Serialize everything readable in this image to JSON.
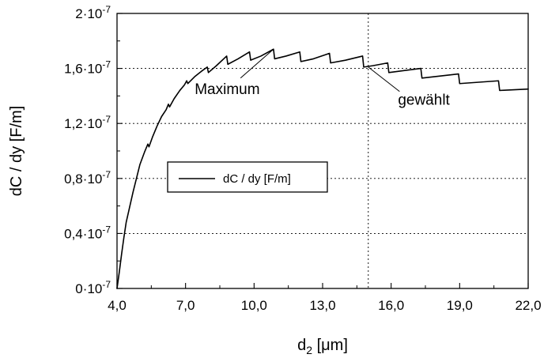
{
  "chart_data": {
    "type": "line",
    "title": "",
    "xlabel_main": "d",
    "xlabel_sub": "2",
    "xlabel_unit": " [μm]",
    "ylabel": "dC / dy  [F/m]",
    "xlim": [
      4.0,
      22.0
    ],
    "ylim": [
      0.0,
      2e-07
    ],
    "x_ticks": [
      4.0,
      7.0,
      10.0,
      13.0,
      16.0,
      19.0,
      22.0
    ],
    "x_tick_labels": [
      "4,0",
      "7,0",
      "10,0",
      "13,0",
      "16,0",
      "19,0",
      "22,0"
    ],
    "y_ticks": [
      {
        "value": 0.0,
        "mantissa": "0·10",
        "exp": "-7"
      },
      {
        "value": 4e-08,
        "mantissa": "0,4·10",
        "exp": "-7"
      },
      {
        "value": 8e-08,
        "mantissa": "0,8·10",
        "exp": "-7"
      },
      {
        "value": 1.2e-07,
        "mantissa": "1,2·10",
        "exp": "-7"
      },
      {
        "value": 1.6e-07,
        "mantissa": "1,6·10",
        "exp": "-7"
      },
      {
        "value": 2e-07,
        "mantissa": "2·10",
        "exp": "-7"
      }
    ],
    "grid": {
      "horizontal_dotted": true,
      "x_marker": 15.0
    },
    "legend": {
      "position": "center-left",
      "entries": [
        "dC / dy  [F/m]"
      ]
    },
    "series": [
      {
        "name": "dC / dy  [F/m]",
        "color": "#000000",
        "points": [
          [
            4.0,
            0.0
          ],
          [
            4.1,
            1.2e-08
          ],
          [
            4.2,
            2.5e-08
          ],
          [
            4.3,
            3.7e-08
          ],
          [
            4.4,
            4.8e-08
          ],
          [
            4.55,
            5.9e-08
          ],
          [
            4.7,
            7e-08
          ],
          [
            4.85,
            8e-08
          ],
          [
            5.0,
            9e-08
          ],
          [
            5.2,
            9.9e-08
          ],
          [
            5.35,
            1.05e-07
          ],
          [
            5.4,
            1.03e-07
          ],
          [
            5.55,
            1.1e-07
          ],
          [
            5.75,
            1.18e-07
          ],
          [
            5.95,
            1.25e-07
          ],
          [
            6.15,
            1.3e-07
          ],
          [
            6.25,
            1.34e-07
          ],
          [
            6.3,
            1.32e-07
          ],
          [
            6.5,
            1.38e-07
          ],
          [
            6.75,
            1.44e-07
          ],
          [
            6.95,
            1.48e-07
          ],
          [
            7.05,
            1.51e-07
          ],
          [
            7.1,
            1.49e-07
          ],
          [
            7.4,
            1.54e-07
          ],
          [
            7.7,
            1.58e-07
          ],
          [
            7.95,
            1.61e-07
          ],
          [
            8.0,
            1.57e-07
          ],
          [
            8.35,
            1.62e-07
          ],
          [
            8.8,
            1.69e-07
          ],
          [
            8.85,
            1.63e-07
          ],
          [
            9.3,
            1.67e-07
          ],
          [
            9.8,
            1.72e-07
          ],
          [
            9.85,
            1.66e-07
          ],
          [
            10.3,
            1.69e-07
          ],
          [
            10.85,
            1.74e-07
          ],
          [
            10.9,
            1.67e-07
          ],
          [
            11.4,
            1.69e-07
          ],
          [
            12.0,
            1.72e-07
          ],
          [
            12.05,
            1.65e-07
          ],
          [
            12.6,
            1.67e-07
          ],
          [
            13.3,
            1.71e-07
          ],
          [
            13.35,
            1.64e-07
          ],
          [
            14.0,
            1.66e-07
          ],
          [
            14.75,
            1.69e-07
          ],
          [
            14.8,
            1.61e-07
          ],
          [
            15.2,
            1.62e-07
          ],
          [
            15.85,
            1.64e-07
          ],
          [
            15.9,
            1.57e-07
          ],
          [
            17.3,
            1.6e-07
          ],
          [
            17.35,
            1.53e-07
          ],
          [
            18.95,
            1.56e-07
          ],
          [
            19.0,
            1.49e-07
          ],
          [
            20.7,
            1.51e-07
          ],
          [
            20.75,
            1.44e-07
          ],
          [
            22.0,
            1.45e-07
          ]
        ]
      }
    ],
    "annotations": [
      {
        "text": "Maximum",
        "label_x": 7.4,
        "label_y": 1.415e-07,
        "point_x": 10.85,
        "point_y": 1.74e-07
      },
      {
        "text": "gewählt",
        "label_x": 16.3,
        "label_y": 1.335e-07,
        "point_x": 15.0,
        "point_y": 1.61e-07
      }
    ]
  }
}
